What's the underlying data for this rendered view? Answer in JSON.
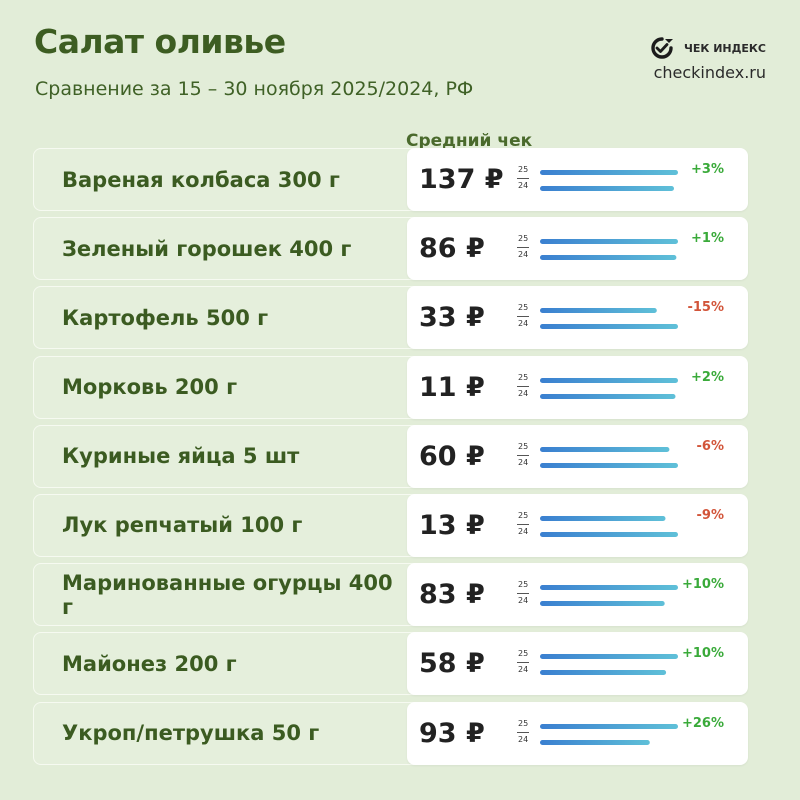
{
  "header": {
    "title": "Салат оливье",
    "subtitle": "Сравнение за 15 – 30 ноября 2025/2024, РФ",
    "brand_name": "ЧЕК ИНДЕКС",
    "brand_url": "checkindex.ru",
    "column_title": "Средний чек"
  },
  "colors": {
    "background": "#e2edd8",
    "title": "#3d5d22",
    "bar_2025_start": "#3a7fd0",
    "bar_2025_end": "#5fc0d8",
    "up": "#3aaa3a",
    "down": "#d2553a"
  },
  "chart_data": {
    "type": "bar",
    "title": "Салат оливье",
    "subtitle": "Сравнение за 15 – 30 ноября 2025/2024, РФ",
    "value_label": "Средний чек",
    "currency": "₽",
    "series": [
      {
        "name": "25"
      },
      {
        "name": "24"
      }
    ],
    "items": [
      {
        "label": "Вареная колбаса 300 г",
        "price": "137 ₽",
        "change": "+3%",
        "v2025": 137,
        "v2024": 133
      },
      {
        "label": "Зеленый горошек 400 г",
        "price": "86 ₽",
        "change": "+1%",
        "v2025": 86,
        "v2024": 85
      },
      {
        "label": "Картофель 500 г",
        "price": "33 ₽",
        "change": "-15%",
        "v2025": 33,
        "v2024": 39
      },
      {
        "label": "Морковь 200 г",
        "price": "11 ₽",
        "change": "+2%",
        "v2025": 11,
        "v2024": 10.8
      },
      {
        "label": "Куриные яйца 5 шт",
        "price": "60 ₽",
        "change": "-6%",
        "v2025": 60,
        "v2024": 64
      },
      {
        "label": "Лук репчатый 100 г",
        "price": "13 ₽",
        "change": "-9%",
        "v2025": 13,
        "v2024": 14.3
      },
      {
        "label": "Маринованные огурцы 400 г",
        "price": "83 ₽",
        "change": "+10%",
        "v2025": 83,
        "v2024": 75
      },
      {
        "label": "Майонез 200 г",
        "price": "58 ₽",
        "change": "+10%",
        "v2025": 58,
        "v2024": 53
      },
      {
        "label": "Укроп/петрушка 50 г",
        "price": "93 ₽",
        "change": "+26%",
        "v2025": 93,
        "v2024": 74
      }
    ]
  }
}
